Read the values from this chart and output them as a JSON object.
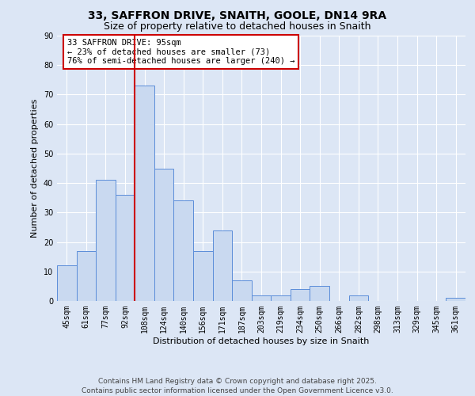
{
  "title": "33, SAFFRON DRIVE, SNAITH, GOOLE, DN14 9RA",
  "subtitle": "Size of property relative to detached houses in Snaith",
  "xlabel": "Distribution of detached houses by size in Snaith",
  "ylabel": "Number of detached properties",
  "bar_labels": [
    "45sqm",
    "61sqm",
    "77sqm",
    "92sqm",
    "108sqm",
    "124sqm",
    "140sqm",
    "156sqm",
    "171sqm",
    "187sqm",
    "203sqm",
    "219sqm",
    "234sqm",
    "250sqm",
    "266sqm",
    "282sqm",
    "298sqm",
    "313sqm",
    "329sqm",
    "345sqm",
    "361sqm"
  ],
  "bar_values": [
    12,
    17,
    41,
    36,
    73,
    45,
    34,
    17,
    24,
    7,
    2,
    2,
    4,
    5,
    0,
    2,
    0,
    0,
    0,
    0,
    1
  ],
  "bar_face_color": "#c9d9f0",
  "bar_edge_color": "#5b8dd9",
  "vline_x": 3.5,
  "vline_color": "#cc0000",
  "annotation_text": "33 SAFFRON DRIVE: 95sqm\n← 23% of detached houses are smaller (73)\n76% of semi-detached houses are larger (240) →",
  "annotation_box_facecolor": "white",
  "annotation_box_edgecolor": "#cc0000",
  "ylim": [
    0,
    90
  ],
  "yticks": [
    0,
    10,
    20,
    30,
    40,
    50,
    60,
    70,
    80,
    90
  ],
  "background_color": "#dce6f5",
  "grid_color": "#ffffff",
  "footer_text": "Contains HM Land Registry data © Crown copyright and database right 2025.\nContains public sector information licensed under the Open Government Licence v3.0.",
  "title_fontsize": 10,
  "subtitle_fontsize": 9,
  "axis_label_fontsize": 8,
  "tick_fontsize": 7,
  "annotation_fontsize": 7.5,
  "footer_fontsize": 6.5
}
